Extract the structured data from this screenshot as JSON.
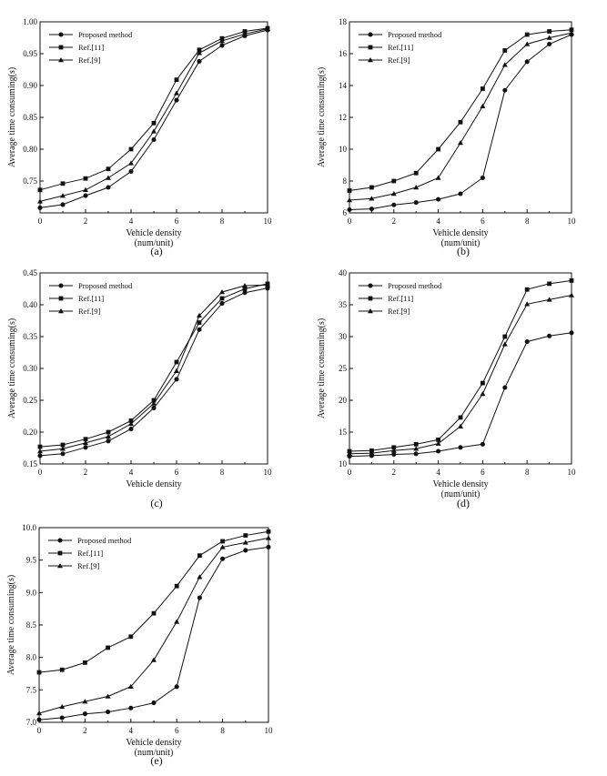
{
  "chart_data": [
    {
      "type": "line",
      "label": "(a)",
      "xlabel": "Vehicle density",
      "xlabel2": "(num/unit)",
      "ylabel": "Average time consuming(s)",
      "x": [
        0,
        1,
        2,
        3,
        4,
        5,
        6,
        7,
        8,
        9,
        10
      ],
      "xticks": [
        "0",
        "2",
        "4",
        "6",
        "8",
        "10"
      ],
      "ylim": [
        0.7,
        1.0
      ],
      "yticks": [
        {
          "v": 0.75,
          "t": "0.75"
        },
        {
          "v": 0.8,
          "t": "0.80"
        },
        {
          "v": 0.85,
          "t": "0.85"
        },
        {
          "v": 0.9,
          "t": "0.90"
        },
        {
          "v": 0.95,
          "t": "0.95"
        },
        {
          "v": 1.0,
          "t": "1.00"
        }
      ],
      "series": [
        {
          "name": "Proposed method",
          "marker": "circle",
          "values": [
            0.708,
            0.713,
            0.727,
            0.74,
            0.765,
            0.815,
            0.877,
            0.938,
            0.963,
            0.978,
            0.987
          ]
        },
        {
          "name": "Ref.[11]",
          "marker": "square",
          "values": [
            0.736,
            0.746,
            0.754,
            0.769,
            0.8,
            0.841,
            0.909,
            0.956,
            0.974,
            0.985,
            0.99
          ]
        },
        {
          "name": "Ref.[9]",
          "marker": "triangle",
          "values": [
            0.718,
            0.727,
            0.736,
            0.755,
            0.778,
            0.828,
            0.888,
            0.951,
            0.97,
            0.981,
            0.989
          ]
        }
      ]
    },
    {
      "type": "line",
      "label": "(b)",
      "xlabel": "Vehicle density",
      "xlabel2": "(num/unit)",
      "ylabel": "Average time consuming(s)",
      "x": [
        0,
        1,
        2,
        3,
        4,
        5,
        6,
        7,
        8,
        9,
        10
      ],
      "xticks": [
        "0",
        "2",
        "4",
        "6",
        "8",
        "10"
      ],
      "ylim": [
        6,
        18
      ],
      "yticks": [
        {
          "v": 6,
          "t": "6"
        },
        {
          "v": 8,
          "t": "8"
        },
        {
          "v": 10,
          "t": "10"
        },
        {
          "v": 12,
          "t": "12"
        },
        {
          "v": 14,
          "t": "14"
        },
        {
          "v": 16,
          "t": "16"
        },
        {
          "v": 18,
          "t": "18"
        }
      ],
      "series": [
        {
          "name": "Proposed method",
          "marker": "circle",
          "values": [
            6.2,
            6.25,
            6.5,
            6.65,
            6.85,
            7.2,
            8.2,
            13.7,
            15.5,
            16.6,
            17.2
          ]
        },
        {
          "name": "Ref.[11]",
          "marker": "square",
          "values": [
            7.4,
            7.6,
            8.0,
            8.5,
            10.0,
            11.7,
            13.8,
            16.2,
            17.2,
            17.4,
            17.5
          ]
        },
        {
          "name": "Ref.[9]",
          "marker": "triangle",
          "values": [
            6.8,
            6.9,
            7.2,
            7.6,
            8.2,
            10.4,
            12.7,
            15.3,
            16.6,
            17.0,
            17.3
          ]
        }
      ]
    },
    {
      "type": "line",
      "label": "(c)",
      "xlabel": "Vehicle density",
      "xlabel2": "",
      "ylabel": "Average time consuming(s)",
      "x": [
        0,
        1,
        2,
        3,
        4,
        5,
        6,
        7,
        8,
        9,
        10
      ],
      "xticks": [
        "0",
        "2",
        "4",
        "6",
        "8",
        "10"
      ],
      "ylim": [
        0.15,
        0.45
      ],
      "yticks": [
        {
          "v": 0.15,
          "t": "0.15"
        },
        {
          "v": 0.2,
          "t": "0.20"
        },
        {
          "v": 0.25,
          "t": "0.25"
        },
        {
          "v": 0.3,
          "t": "0.30"
        },
        {
          "v": 0.35,
          "t": "0.35"
        },
        {
          "v": 0.4,
          "t": "0.40"
        },
        {
          "v": 0.45,
          "t": "0.45"
        }
      ],
      "series": [
        {
          "name": "Proposed method",
          "marker": "circle",
          "values": [
            0.163,
            0.166,
            0.176,
            0.186,
            0.205,
            0.238,
            0.283,
            0.361,
            0.402,
            0.419,
            0.426
          ]
        },
        {
          "name": "Ref.[11]",
          "marker": "square",
          "values": [
            0.177,
            0.18,
            0.189,
            0.2,
            0.218,
            0.25,
            0.31,
            0.372,
            0.41,
            0.425,
            0.433
          ]
        },
        {
          "name": "Ref.[9]",
          "marker": "triangle",
          "values": [
            0.17,
            0.174,
            0.183,
            0.193,
            0.213,
            0.245,
            0.296,
            0.383,
            0.42,
            0.43,
            0.431
          ]
        }
      ]
    },
    {
      "type": "line",
      "label": "(d)",
      "xlabel": "Vehicle density",
      "xlabel2": "(num/unit)",
      "ylabel": "Average time consuming(s)",
      "x": [
        0,
        1,
        2,
        3,
        4,
        5,
        6,
        7,
        8,
        9,
        10
      ],
      "xticks": [
        "0",
        "2",
        "4",
        "6",
        "8",
        "10"
      ],
      "ylim": [
        10,
        40
      ],
      "yticks": [
        {
          "v": 10,
          "t": "10"
        },
        {
          "v": 15,
          "t": "15"
        },
        {
          "v": 20,
          "t": "20"
        },
        {
          "v": 25,
          "t": "25"
        },
        {
          "v": 30,
          "t": "30"
        },
        {
          "v": 35,
          "t": "35"
        },
        {
          "v": 40,
          "t": "40"
        }
      ],
      "series": [
        {
          "name": "Proposed method",
          "marker": "circle",
          "values": [
            11.2,
            11.3,
            11.5,
            11.6,
            12.0,
            12.6,
            13.1,
            22.0,
            29.2,
            30.1,
            30.6
          ]
        },
        {
          "name": "Ref.[11]",
          "marker": "square",
          "values": [
            12.0,
            12.1,
            12.6,
            13.1,
            13.8,
            17.3,
            22.7,
            30.0,
            37.4,
            38.3,
            38.8
          ]
        },
        {
          "name": "Ref.[9]",
          "marker": "triangle",
          "values": [
            11.6,
            11.7,
            12.1,
            12.4,
            13.2,
            15.9,
            21.0,
            28.8,
            35.1,
            35.8,
            36.5
          ]
        }
      ]
    },
    {
      "type": "line",
      "label": "(e)",
      "xlabel": "Vehicle density",
      "xlabel2": "(num/unit)",
      "ylabel": "Average time consuming(s)",
      "x": [
        0,
        1,
        2,
        3,
        4,
        5,
        6,
        7,
        8,
        9,
        10
      ],
      "xticks": [
        "0",
        "2",
        "4",
        "6",
        "8",
        "10"
      ],
      "ylim": [
        7.0,
        10.0
      ],
      "yticks": [
        {
          "v": 7.0,
          "t": "7.0"
        },
        {
          "v": 7.5,
          "t": "7.5"
        },
        {
          "v": 8.0,
          "t": "8.0"
        },
        {
          "v": 8.5,
          "t": "8.5"
        },
        {
          "v": 9.0,
          "t": "9.0"
        },
        {
          "v": 9.5,
          "t": "9.5"
        },
        {
          "v": 10.0,
          "t": "10.0"
        }
      ],
      "series": [
        {
          "name": "Proposed method",
          "marker": "circle",
          "values": [
            7.04,
            7.07,
            7.13,
            7.16,
            7.22,
            7.3,
            7.55,
            8.92,
            9.52,
            9.65,
            9.7
          ]
        },
        {
          "name": "Ref.[11]",
          "marker": "square",
          "values": [
            7.77,
            7.81,
            7.92,
            8.15,
            8.32,
            8.68,
            9.1,
            9.57,
            9.79,
            9.88,
            9.94
          ]
        },
        {
          "name": "Ref.[9]",
          "marker": "triangle",
          "values": [
            7.14,
            7.24,
            7.32,
            7.4,
            7.55,
            7.96,
            8.55,
            9.24,
            9.7,
            9.77,
            9.84
          ]
        }
      ]
    }
  ]
}
